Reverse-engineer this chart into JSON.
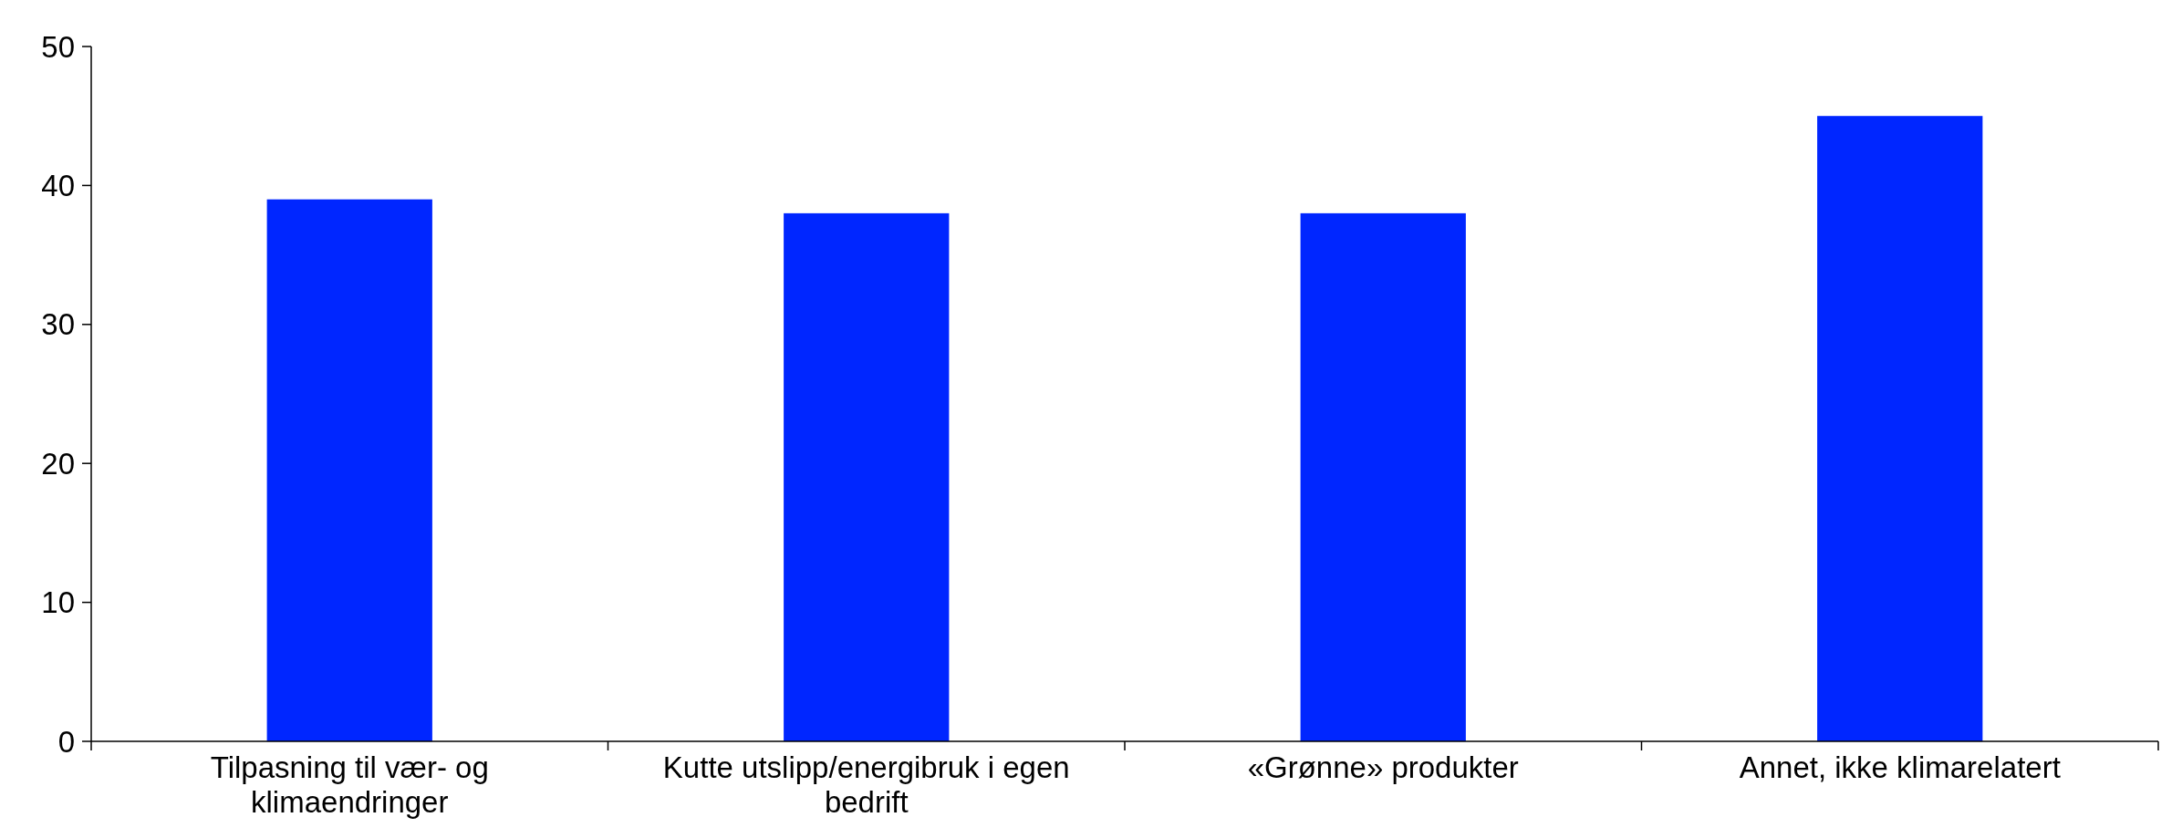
{
  "chart_data": {
    "type": "bar",
    "categories": [
      "Tilpasning til vær- og klimaendringer",
      "Kutte utslipp/energibruk i egen bedrift",
      "«Grønne» produkter",
      "Annet, ikke klimarelatert"
    ],
    "values": [
      39,
      38,
      38,
      45
    ],
    "color": "#0026ff",
    "ylim": [
      0,
      50
    ],
    "yticks": [
      0,
      10,
      20,
      30,
      40,
      50
    ],
    "grid": false
  }
}
